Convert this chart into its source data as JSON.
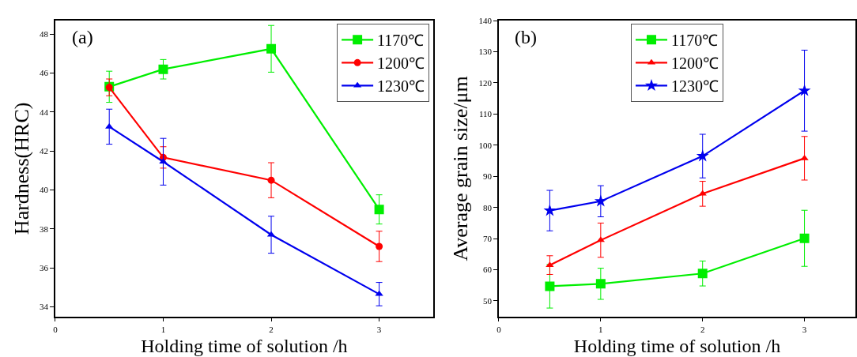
{
  "chart_data": [
    {
      "type": "line",
      "annotations": [
        "(a)"
      ],
      "xlabel": "Holding time of solution /h",
      "ylabel": "Hardness(HRC)",
      "x": [
        0.5,
        1,
        2,
        3
      ],
      "xlim": [
        0,
        3.5
      ],
      "xticks": [
        0,
        1,
        2,
        3
      ],
      "ylim": [
        33.5,
        48.7
      ],
      "yticks": [
        34,
        36,
        38,
        40,
        42,
        44,
        46,
        48
      ],
      "legend": "top right",
      "series": [
        {
          "name": "1170℃",
          "color": "#00ee00",
          "marker": "square",
          "values": [
            45.3,
            46.2,
            47.25,
            39.0
          ],
          "errors": [
            0.8,
            0.5,
            1.2,
            0.75
          ]
        },
        {
          "name": "1200℃",
          "color": "#ff0000",
          "marker": "circle",
          "values": [
            45.27,
            41.67,
            40.5,
            37.1
          ],
          "errors": [
            0.43,
            0.55,
            0.9,
            0.78
          ]
        },
        {
          "name": "1230℃",
          "color": "#0000ee",
          "marker": "triangle",
          "values": [
            43.25,
            41.45,
            37.7,
            34.65
          ],
          "errors": [
            0.9,
            1.2,
            0.95,
            0.6
          ]
        }
      ]
    },
    {
      "type": "line",
      "annotations": [
        "(b)"
      ],
      "xlabel": "Holding time of solution /h",
      "ylabel": "Average grain size/μm",
      "x": [
        0.5,
        1,
        2,
        3
      ],
      "xlim": [
        0,
        3.5
      ],
      "xticks": [
        0,
        1,
        2,
        3
      ],
      "ylim": [
        45,
        140
      ],
      "yticks": [
        50,
        60,
        70,
        80,
        90,
        100,
        110,
        120,
        130,
        140
      ],
      "legend": "top",
      "series": [
        {
          "name": "1170℃",
          "color": "#00ee00",
          "marker": "square",
          "values": [
            54.7,
            55.5,
            58.8,
            70.1
          ],
          "errors": [
            7,
            5,
            4,
            9
          ]
        },
        {
          "name": "1200℃",
          "color": "#ff0000",
          "marker": "triangle",
          "values": [
            61.5,
            69.5,
            84.4,
            95.8
          ],
          "errors": [
            3,
            5.5,
            4,
            7
          ]
        },
        {
          "name": "1230℃",
          "color": "#0000ee",
          "marker": "star",
          "values": [
            79,
            82,
            96.5,
            117.5
          ],
          "errors": [
            6.5,
            5,
            7,
            13
          ]
        }
      ]
    }
  ]
}
